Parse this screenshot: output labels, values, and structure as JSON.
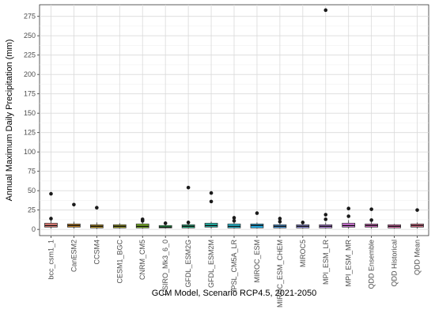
{
  "chart_data": {
    "type": "boxplot",
    "title": "",
    "xlabel": "GCM Model, Scenario RCP4.5, 2021-2050",
    "ylabel": "Annual Maximum Daily Precipitation (mm)",
    "ylim": [
      -8,
      290
    ],
    "yticks": [
      0,
      25,
      50,
      75,
      100,
      125,
      150,
      175,
      200,
      225,
      250,
      275
    ],
    "grid": true,
    "legend": "none",
    "categories": [
      "bcc_csm1_1",
      "CanESM2",
      "CCSM4",
      "CESM1_BGC",
      "CNRM_CM5",
      "CSIRO_Mk3_6_0",
      "GFDL_ESM2G",
      "GFDL_ESM2M",
      "IPSL_CM5A_LR",
      "MIROC_ESM",
      "MIROC_ESM_CHEM",
      "MIROC5",
      "MPI_ESM_LR",
      "MPI_ESM_MR",
      "QDD Ensemble",
      "QDD Historical",
      "QDD Mean"
    ],
    "series": [
      {
        "q1": 3,
        "median": 5,
        "q3": 8,
        "whisker_low": 1,
        "whisker_high": 12,
        "outliers": [
          14,
          46
        ],
        "color": "#F8766D"
      },
      {
        "q1": 3,
        "median": 5,
        "q3": 7,
        "whisker_low": 1,
        "whisker_high": 10,
        "outliers": [
          32
        ],
        "color": "#E58700"
      },
      {
        "q1": 2,
        "median": 4,
        "q3": 6,
        "whisker_low": 0.5,
        "whisker_high": 9,
        "outliers": [
          28
        ],
        "color": "#C99800"
      },
      {
        "q1": 2,
        "median": 4,
        "q3": 6,
        "whisker_low": 1,
        "whisker_high": 8,
        "outliers": [],
        "color": "#A3A500"
      },
      {
        "q1": 2,
        "median": 4,
        "q3": 7,
        "whisker_low": 1,
        "whisker_high": 9,
        "outliers": [
          11,
          13
        ],
        "color": "#6BB100"
      },
      {
        "q1": 2,
        "median": 3,
        "q3": 5,
        "whisker_low": 1,
        "whisker_high": 7,
        "outliers": [
          8
        ],
        "color": "#00BA38"
      },
      {
        "q1": 2,
        "median": 4,
        "q3": 6,
        "whisker_low": 1,
        "whisker_high": 8,
        "outliers": [
          9,
          54
        ],
        "color": "#00BF7D"
      },
      {
        "q1": 3,
        "median": 5,
        "q3": 8,
        "whisker_low": 1,
        "whisker_high": 10,
        "outliers": [
          36,
          47
        ],
        "color": "#00C0AF"
      },
      {
        "q1": 2,
        "median": 4,
        "q3": 7,
        "whisker_low": 1,
        "whisker_high": 9,
        "outliers": [
          11,
          15
        ],
        "color": "#00BCD8"
      },
      {
        "q1": 2,
        "median": 5,
        "q3": 7,
        "whisker_low": 1,
        "whisker_high": 9,
        "outliers": [
          21
        ],
        "color": "#00B0F6"
      },
      {
        "q1": 2,
        "median": 4,
        "q3": 6,
        "whisker_low": 1,
        "whisker_high": 8,
        "outliers": [
          10,
          14
        ],
        "color": "#35A2FF"
      },
      {
        "q1": 2,
        "median": 4,
        "q3": 6,
        "whisker_low": 1,
        "whisker_high": 8,
        "outliers": [
          9
        ],
        "color": "#9590FF"
      },
      {
        "q1": 2,
        "median": 4,
        "q3": 6,
        "whisker_low": 1,
        "whisker_high": 9,
        "outliers": [
          13,
          19,
          283
        ],
        "color": "#C77CFF"
      },
      {
        "q1": 3,
        "median": 5,
        "q3": 8,
        "whisker_low": 1,
        "whisker_high": 12,
        "outliers": [
          17,
          27
        ],
        "color": "#E76BF3"
      },
      {
        "q1": 3,
        "median": 5,
        "q3": 7,
        "whisker_low": 1,
        "whisker_high": 10,
        "outliers": [
          12,
          26
        ],
        "color": "#FA62DB"
      },
      {
        "q1": 2,
        "median": 4,
        "q3": 6,
        "whisker_low": 1,
        "whisker_high": 7,
        "outliers": [],
        "color": "#FF62BC"
      },
      {
        "q1": 3,
        "median": 5,
        "q3": 7,
        "whisker_low": 1,
        "whisker_high": 9,
        "outliers": [
          25
        ],
        "color": "#FF6C91"
      }
    ]
  }
}
